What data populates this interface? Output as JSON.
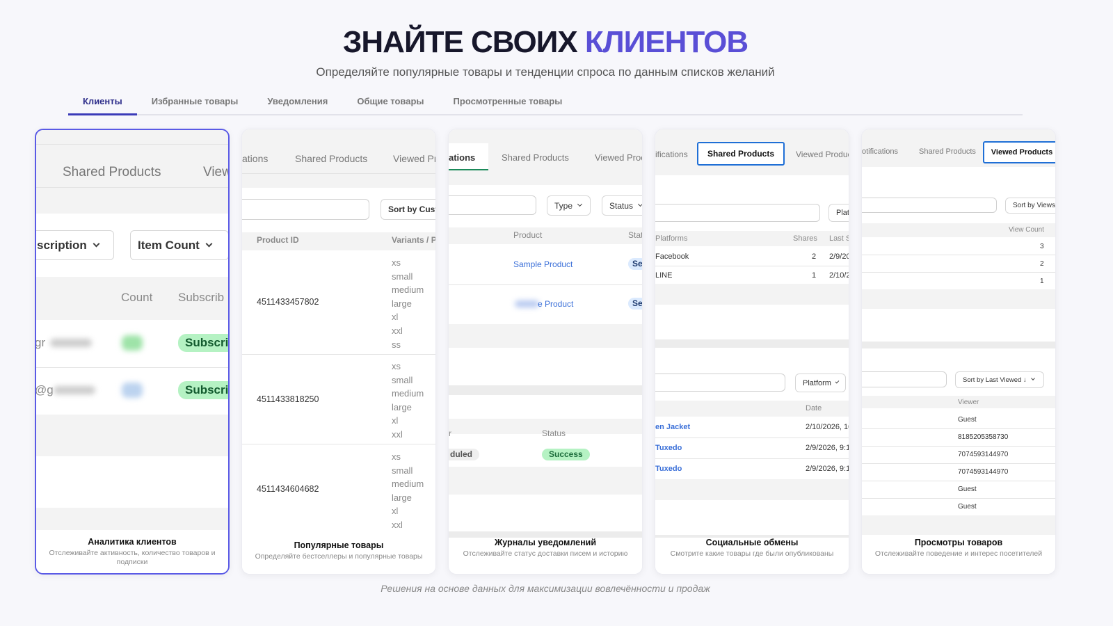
{
  "header": {
    "title_part1": "ЗНАЙТЕ СВОИХ",
    "title_part2": "КЛИЕНТОВ",
    "subtitle": "Определяйте популярные товары и тенденции спроса по данным списков желаний",
    "accent_color": "#5a4fd6"
  },
  "tabs": [
    {
      "label": "Клиенты",
      "active": true
    },
    {
      "label": "Избранные товары"
    },
    {
      "label": "Уведомления"
    },
    {
      "label": "Общие товары"
    },
    {
      "label": "Просмотренные товары"
    }
  ],
  "cards": [
    {
      "title": "Аналитика клиентов",
      "desc": "Отслеживайте активность, количество товаров и подписки",
      "tabs": [
        "Shared Products",
        "View"
      ],
      "filters": [
        "scription",
        "Item Count"
      ],
      "columns": [
        "Count",
        "Subscrib"
      ],
      "rows": [
        {
          "email": "gr",
          "status": "Subscri"
        },
        {
          "email": "@g",
          "status": "Subscri"
        }
      ]
    },
    {
      "title": "Популярные товары",
      "desc": "Определяйте бестселлеры и популярные товары",
      "tabs": [
        "ations",
        "Shared Products",
        "Viewed Pr"
      ],
      "sort": "Sort by Cust",
      "columns": [
        "Product ID",
        "Variants / P"
      ],
      "rows": [
        {
          "id": "4511433457802",
          "variants": "xs\nsmall\nmedium\nlarge\nxl\nxxl\nss"
        },
        {
          "id": "4511433818250",
          "variants": "xs\nsmall\nmedium\nlarge\nxl\nxxl"
        },
        {
          "id": "4511434604682",
          "variants": "xs\nsmall\nmedium\nlarge\nxl\nxxl"
        }
      ]
    },
    {
      "title": "Журналы уведомлений",
      "desc": "Отслеживайте статус доставки писем и историю",
      "tabs": [
        "ations",
        "Shared Products",
        "Viewed Proc"
      ],
      "filters": [
        "Type",
        "Status"
      ],
      "columns": [
        "Product",
        "Stat"
      ],
      "rows": [
        {
          "product": "Sample Product",
          "status": "Se"
        },
        {
          "product": "e Product",
          "status": "Se"
        }
      ],
      "log_columns": [
        "r",
        "Status"
      ],
      "log_rows": [
        {
          "type": "duled",
          "status": "Success"
        }
      ]
    },
    {
      "title": "Социальные обмены",
      "desc": "Смотрите какие товары где были опубликованы",
      "tabs": [
        "ifications",
        "Shared Products",
        "Viewed Produc"
      ],
      "filter": "Platf",
      "columns": [
        "Platforms",
        "Shares",
        "Last S"
      ],
      "rows": [
        {
          "platform": "Facebook",
          "shares": "2",
          "last": "2/9/20"
        },
        {
          "platform": "LINE",
          "shares": "1",
          "last": "2/10/2"
        }
      ],
      "filter2": "Platform",
      "columns2": [
        "Date"
      ],
      "rows2": [
        {
          "product": "en Jacket",
          "date": "2/10/2026, 10"
        },
        {
          "product": "Tuxedo",
          "date": "2/9/2026, 9:1"
        },
        {
          "product": "Tuxedo",
          "date": "2/9/2026, 9:1"
        }
      ]
    },
    {
      "title": "Просмотры товаров",
      "desc": "Отслеживайте поведение и интерес посетителей",
      "tabs": [
        "otifications",
        "Shared Products",
        "Viewed Products"
      ],
      "sort": "Sort by Views",
      "columns": [
        "View Count"
      ],
      "rows": [
        "3",
        "2",
        "1"
      ],
      "sort2": "Sort by Last Viewed ↓",
      "columns2": [
        "Viewer"
      ],
      "rows2": [
        "Guest",
        "8185205358730",
        "7074593144970",
        "7074593144970",
        "Guest",
        "Guest"
      ]
    }
  ],
  "caption": "Решения на основе данных для максимизации вовлечённости и продаж"
}
